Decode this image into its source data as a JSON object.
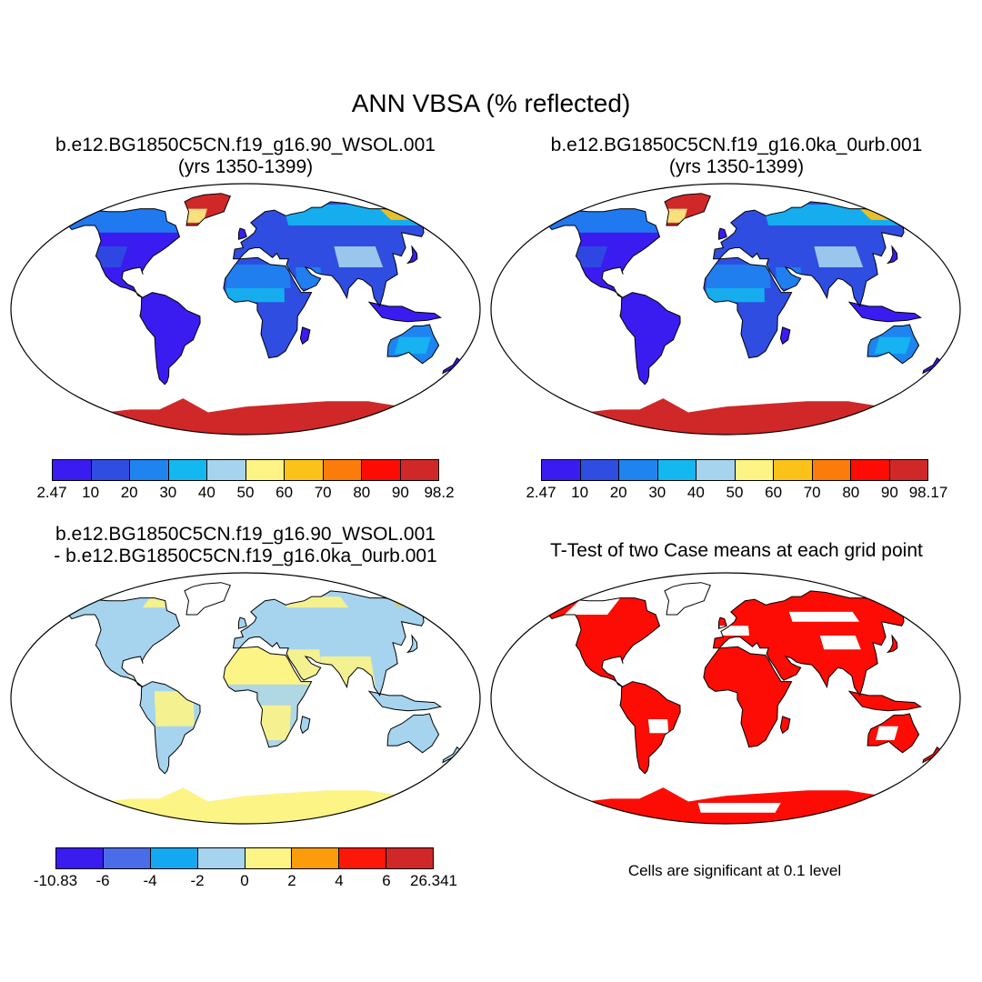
{
  "title": "ANN VBSA (% reflected)",
  "panels": [
    {
      "title_line1": "b.e12.BG1850C5CN.f19_g16.90_WSOL.001",
      "title_line2": "(yrs 1350-1399)",
      "colorbar": {
        "colors": [
          "#3a1cf0",
          "#2f4de0",
          "#1f84f0",
          "#14b8f0",
          "#a6d4ee",
          "#fdf486",
          "#fbc21a",
          "#fb7c0a",
          "#fc0c05",
          "#d02828"
        ],
        "labels": [
          "2.47",
          "10",
          "20",
          "30",
          "40",
          "50",
          "60",
          "70",
          "80",
          "90",
          "98.2"
        ]
      }
    },
    {
      "title_line1": "b.e12.BG1850C5CN.f19_g16.0ka_0urb.001",
      "title_line2": "(yrs 1350-1399)",
      "colorbar": {
        "colors": [
          "#3a1cf0",
          "#2f4de0",
          "#1f84f0",
          "#14b8f0",
          "#a6d4ee",
          "#fdf486",
          "#fbc21a",
          "#fb7c0a",
          "#fc0c05",
          "#d02828"
        ],
        "labels": [
          "2.47",
          "10",
          "20",
          "30",
          "40",
          "50",
          "60",
          "70",
          "80",
          "90",
          "98.17"
        ]
      }
    },
    {
      "title_line1": "b.e12.BG1850C5CN.f19_g16.90_WSOL.001",
      "title_line2": "- b.e12.BG1850C5CN.f19_g16.0ka_0urb.001",
      "colorbar": {
        "colors": [
          "#3a1cf0",
          "#4a6ce8",
          "#14a8f0",
          "#a6d4ee",
          "#fdf486",
          "#fb9c0a",
          "#fc1808",
          "#d02828"
        ],
        "labels": [
          "-10.83",
          "-6",
          "-4",
          "-2",
          "0",
          "2",
          "4",
          "6",
          "26.341"
        ]
      }
    },
    {
      "title_line1": "T-Test of two Case means at each grid point",
      "title_line2": "",
      "note": "Cells are significant at 0.1 level"
    }
  ]
}
